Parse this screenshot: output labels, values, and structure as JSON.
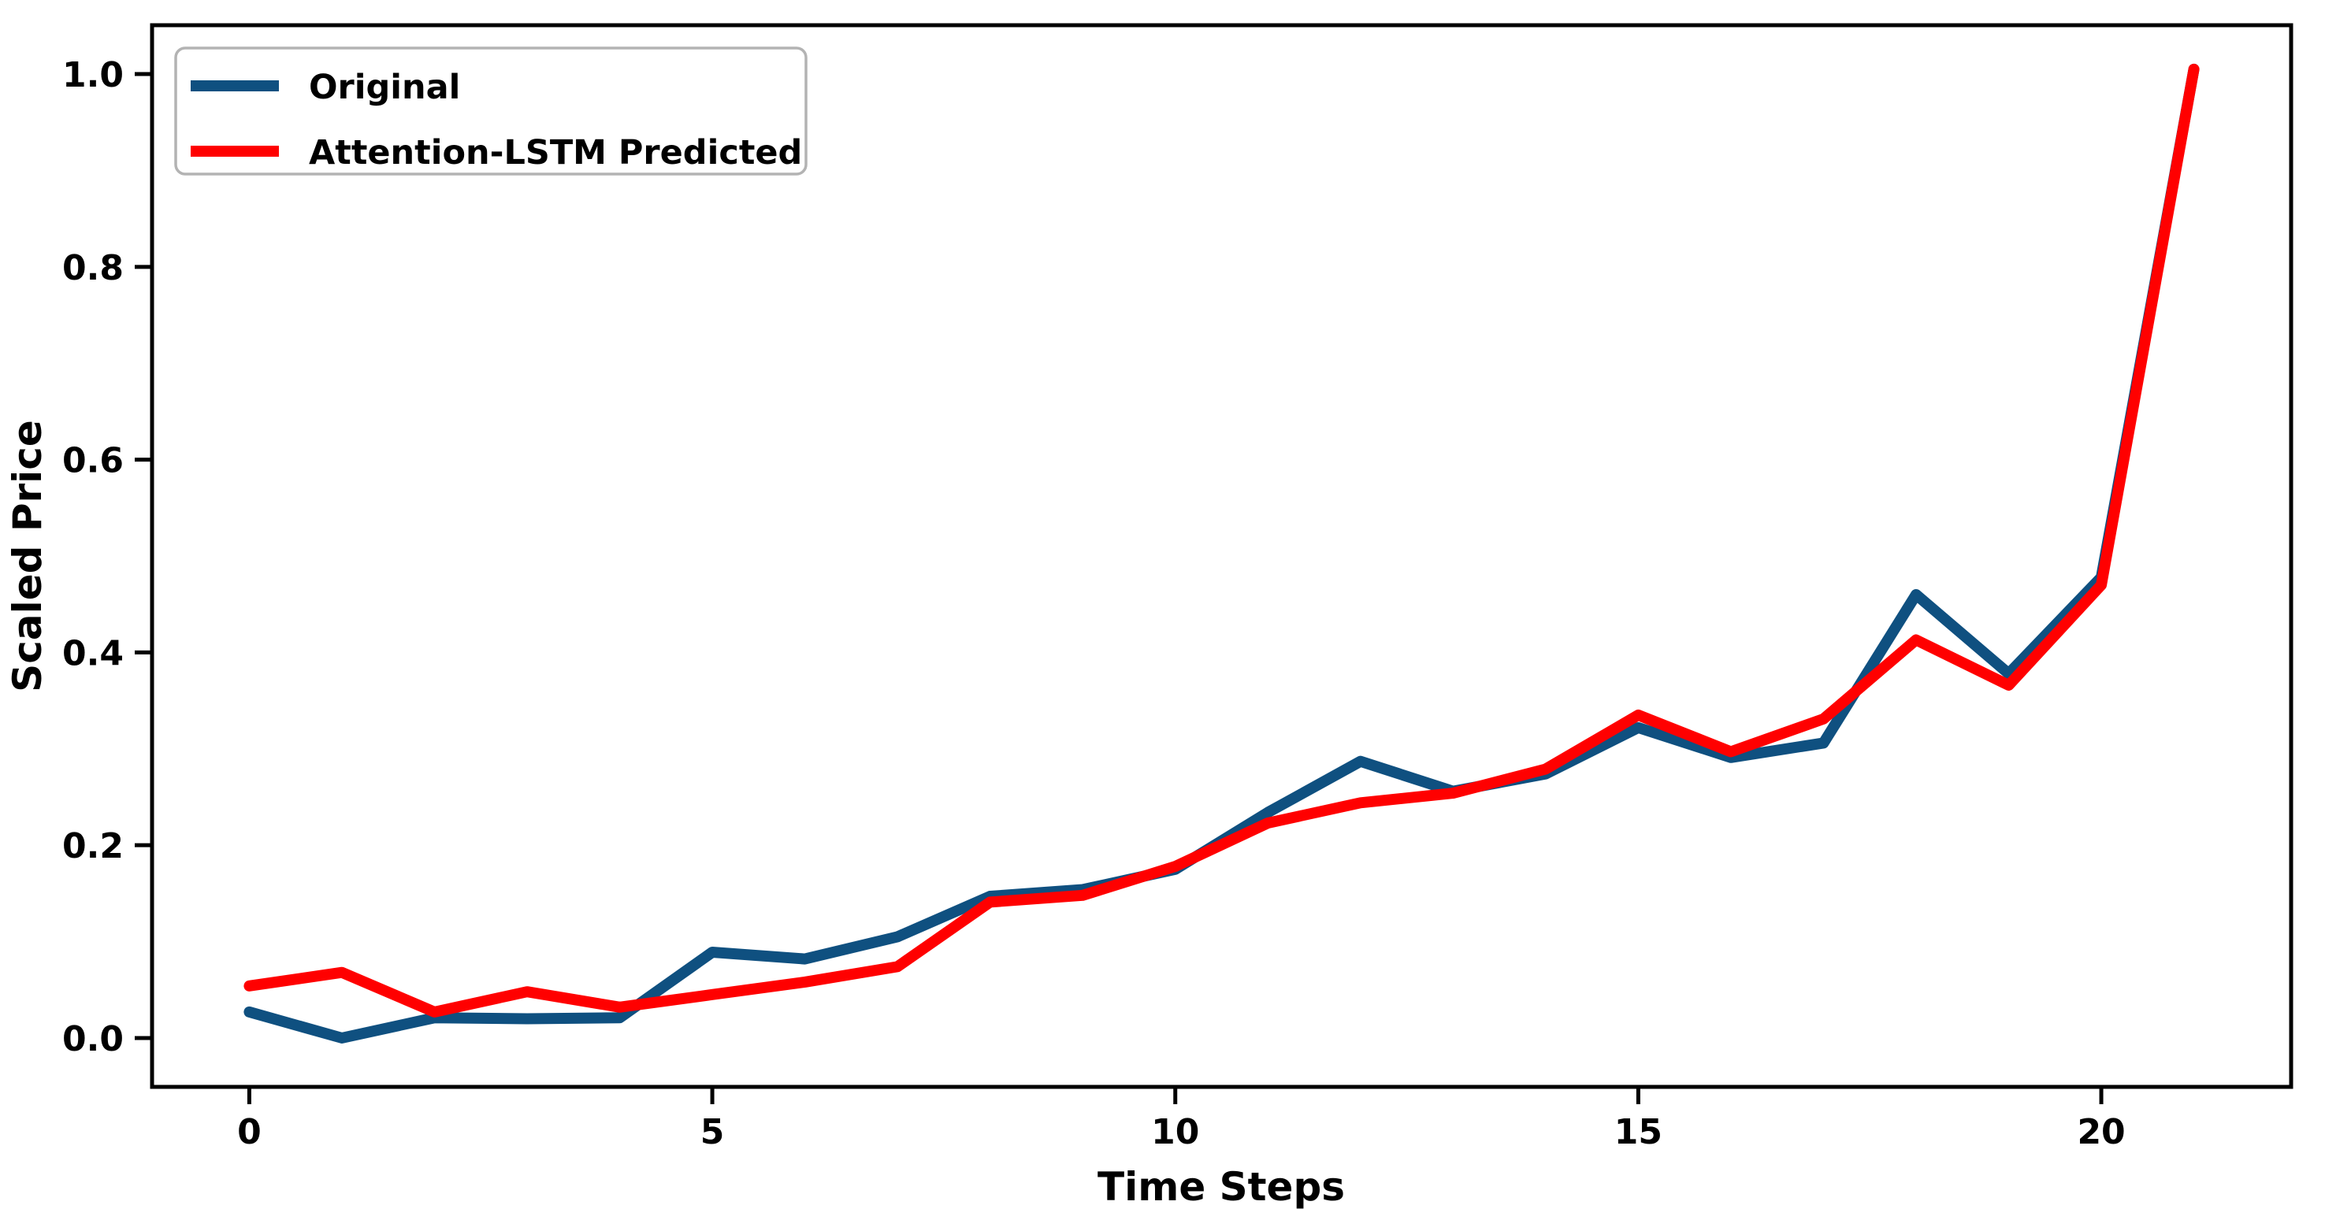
{
  "figure": {
    "background_color": "#ffffff",
    "axis_color": "#000000",
    "legend_border_color": "#b3b3b3"
  },
  "chart_data": {
    "type": "line",
    "title": "",
    "xlabel": "Time Steps",
    "ylabel": "Scaled Price",
    "x": [
      0,
      1,
      2,
      3,
      4,
      5,
      6,
      7,
      8,
      9,
      10,
      11,
      12,
      13,
      14,
      15,
      16,
      17,
      18,
      19,
      20,
      21
    ],
    "series": [
      {
        "name": "Original",
        "color": "#0f5080",
        "values": [
          0.027,
          0.0,
          0.021,
          0.02,
          0.021,
          0.089,
          0.082,
          0.105,
          0.147,
          0.154,
          0.175,
          0.234,
          0.287,
          0.256,
          0.274,
          0.322,
          0.291,
          0.306,
          0.46,
          0.378,
          0.478,
          1.005
        ]
      },
      {
        "name": "Attention-LSTM Predicted",
        "color": "#ff0000",
        "values": [
          0.054,
          0.068,
          0.027,
          0.048,
          0.032,
          0.045,
          0.058,
          0.074,
          0.141,
          0.148,
          0.178,
          0.223,
          0.244,
          0.254,
          0.279,
          0.335,
          0.297,
          0.331,
          0.413,
          0.366,
          0.47,
          1.005
        ]
      }
    ],
    "xlim": [
      -1.05,
      22.05
    ],
    "ylim": [
      -0.0507,
      1.0507
    ],
    "xticks": [
      0,
      5,
      10,
      15,
      20
    ],
    "xtick_labels": [
      "0",
      "5",
      "10",
      "15",
      "20"
    ],
    "yticks": [
      0.0,
      0.2,
      0.4,
      0.6,
      0.8,
      1.0
    ],
    "ytick_labels": [
      "0.0",
      "0.2",
      "0.4",
      "0.6",
      "0.8",
      "1.0"
    ],
    "grid": false,
    "legend_position": "upper-left",
    "line_width": 14
  }
}
